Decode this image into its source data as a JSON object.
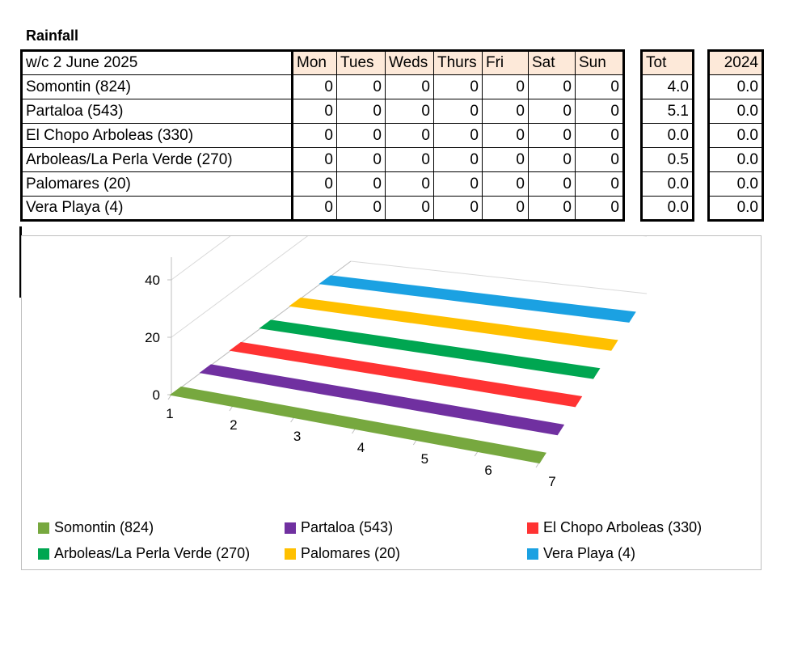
{
  "title": "Rainfall",
  "table": {
    "week_label": "w/c 2 June  2025",
    "days": [
      "Mon",
      "Tues",
      "Weds",
      "Thurs",
      "Fri",
      "Sat",
      "Sun"
    ],
    "tot_header": "Tot",
    "year_header": "2024",
    "rows": [
      {
        "name": "Somontin (824)",
        "values": [
          "0",
          "0",
          "0",
          "0",
          "0",
          "0",
          "0"
        ],
        "tot": "4.0",
        "prev": "0.0"
      },
      {
        "name": "Partaloa (543)",
        "values": [
          "0",
          "0",
          "0",
          "0",
          "0",
          "0",
          "0"
        ],
        "tot": "5.1",
        "prev": "0.0"
      },
      {
        "name": "El Chopo Arboleas (330)",
        "values": [
          "0",
          "0",
          "0",
          "0",
          "0",
          "0",
          "0"
        ],
        "tot": "0.0",
        "prev": "0.0"
      },
      {
        "name": "Arboleas/La Perla Verde (270)",
        "values": [
          "0",
          "0",
          "0",
          "0",
          "0",
          "0",
          "0"
        ],
        "tot": "0.5",
        "prev": "0.0"
      },
      {
        "name": "Palomares (20)",
        "values": [
          "0",
          "0",
          "0",
          "0",
          "0",
          "0",
          "0"
        ],
        "tot": "0.0",
        "prev": "0.0"
      },
      {
        "name": "Vera Playa (4)",
        "values": [
          "0",
          "0",
          "0",
          "0",
          "0",
          "0",
          "0"
        ],
        "tot": "0.0",
        "prev": "0.0"
      }
    ]
  },
  "chart_data": {
    "type": "area",
    "x": [
      1,
      2,
      3,
      4,
      5,
      6,
      7
    ],
    "ylim": [
      0,
      40
    ],
    "yticks": [
      0,
      20,
      40
    ],
    "grid": true,
    "legend_position": "bottom",
    "series": [
      {
        "name": "Somontin (824)",
        "values": [
          0,
          0,
          0,
          0,
          0,
          0,
          0
        ],
        "color": "#77a83f"
      },
      {
        "name": "Partaloa (543)",
        "values": [
          0,
          0,
          0,
          0,
          0,
          0,
          0
        ],
        "color": "#7030a0"
      },
      {
        "name": "El Chopo Arboleas (330)",
        "values": [
          0,
          0,
          0,
          0,
          0,
          0,
          0
        ],
        "color": "#ff3333"
      },
      {
        "name": "Arboleas/La Perla Verde (270)",
        "values": [
          0,
          0,
          0,
          0,
          0,
          0,
          0
        ],
        "color": "#00a651"
      },
      {
        "name": "Palomares (20)",
        "values": [
          0,
          0,
          0,
          0,
          0,
          0,
          0
        ],
        "color": "#ffc000"
      },
      {
        "name": "Vera Playa (4)",
        "values": [
          0,
          0,
          0,
          0,
          0,
          0,
          0
        ],
        "color": "#1ba1e2"
      }
    ]
  }
}
